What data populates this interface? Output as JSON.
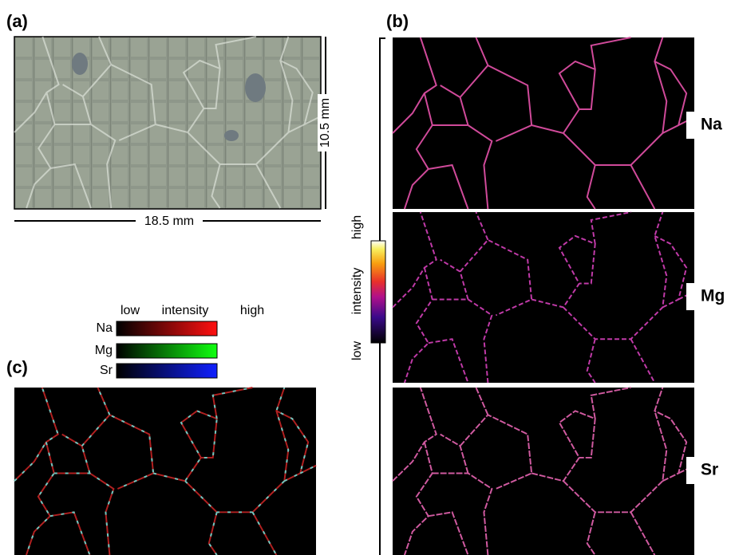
{
  "panel_a": {
    "label": "(a)",
    "height_label": "10.5 mm",
    "width_label": "18.5 mm"
  },
  "panel_b": {
    "label": "(b)",
    "colorbar": {
      "high": "high",
      "title": "intensity",
      "low": "low"
    },
    "maps": [
      "Na",
      "Mg",
      "Sr"
    ]
  },
  "panel_c": {
    "label": "(c)",
    "legend": {
      "low": "low",
      "title": "intensity",
      "high": "high",
      "elements": [
        "Na",
        "Mg",
        "Sr"
      ]
    }
  }
}
